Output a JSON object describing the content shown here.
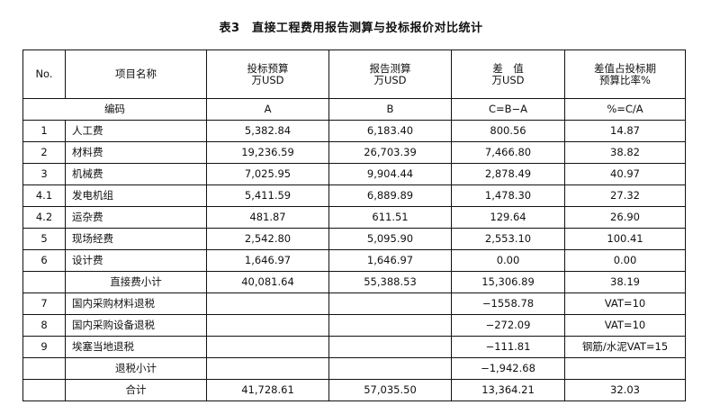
{
  "title": "表3　直接工程费用报告测算与投标报价对比统计",
  "header": {
    "no": "No.",
    "name": "项目名称",
    "a_line1": "投标预算",
    "a_line2": "万USD",
    "b_line1": "报告测算",
    "b_line2": "万USD",
    "c_line1": "差　值",
    "c_line2": "万USD",
    "d_line1": "差值占投标期",
    "d_line2": "预算比率%"
  },
  "code_row": {
    "label": "编码",
    "a": "A",
    "b": "B",
    "c": "C=B−A",
    "d": "%=C/A"
  },
  "rows": [
    {
      "no": "1",
      "name": "人工费",
      "a": "5,382.84",
      "b": "6,183.40",
      "c": "800.56",
      "d": "14.87"
    },
    {
      "no": "2",
      "name": "材料费",
      "a": "19,236.59",
      "b": "26,703.39",
      "c": "7,466.80",
      "d": "38.82"
    },
    {
      "no": "3",
      "name": "机械费",
      "a": "7,025.95",
      "b": "9,904.44",
      "c": "2,878.49",
      "d": "40.97"
    },
    {
      "no": "4.1",
      "name": "发电机组",
      "a": "5,411.59",
      "b": "6,889.89",
      "c": "1,478.30",
      "d": "27.32"
    },
    {
      "no": "4.2",
      "name": "运杂费",
      "a": "481.87",
      "b": "611.51",
      "c": "129.64",
      "d": "26.90"
    },
    {
      "no": "5",
      "name": "现场经费",
      "a": "2,542.80",
      "b": "5,095.90",
      "c": "2,553.10",
      "d": "100.41"
    },
    {
      "no": "6",
      "name": "设计费",
      "a": "1,646.97",
      "b": "1,646.97",
      "c": "0.00",
      "d": "0.00"
    },
    {
      "no": "",
      "name": "直接费小计",
      "a": "40,081.64",
      "b": "55,388.53",
      "c": "15,306.89",
      "d": "38.19",
      "subtotal": true
    },
    {
      "no": "7",
      "name": "国内采购材料退税",
      "a": "",
      "b": "",
      "c": "−1558.78",
      "d": "VAT=10"
    },
    {
      "no": "8",
      "name": "国内采购设备退税",
      "a": "",
      "b": "",
      "c": "−272.09",
      "d": "VAT=10"
    },
    {
      "no": "9",
      "name": "埃塞当地退税",
      "a": "",
      "b": "",
      "c": "−111.81",
      "d": "钢筋/水泥VAT=15"
    },
    {
      "no": "",
      "name": "退税小计",
      "a": "",
      "b": "",
      "c": "−1,942.68",
      "d": "",
      "subtotal": true
    },
    {
      "no": "",
      "name": "合计",
      "a": "41,728.61",
      "b": "57,035.50",
      "c": "13,364.21",
      "d": "32.03",
      "subtotal": true
    }
  ]
}
